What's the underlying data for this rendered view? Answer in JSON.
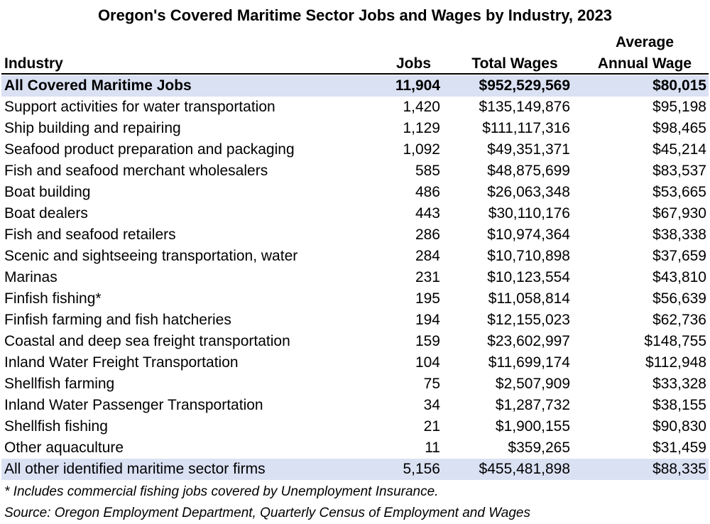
{
  "title": "Oregon's Covered Maritime Sector Jobs and Wages by Industry, 2023",
  "table": {
    "header": [
      [
        "Industry"
      ],
      [
        "Jobs"
      ],
      [
        "Total Wages"
      ],
      [
        "Average",
        "Annual Wage"
      ]
    ],
    "rows": [
      [
        "All Covered Maritime Jobs",
        "11,904",
        "$952,529,569",
        "$80,015"
      ],
      [
        "Support activities for water transportation",
        "1,420",
        "$135,149,876",
        "$95,198"
      ],
      [
        "Ship building and repairing",
        "1,129",
        "$111,117,316",
        "$98,465"
      ],
      [
        "Seafood product preparation and packaging",
        "1,092",
        "$49,351,371",
        "$45,214"
      ],
      [
        "Fish and seafood merchant wholesalers",
        "585",
        "$48,875,699",
        "$83,537"
      ],
      [
        "Boat building",
        "486",
        "$26,063,348",
        "$53,665"
      ],
      [
        "Boat dealers",
        "443",
        "$30,110,176",
        "$67,930"
      ],
      [
        "Fish and seafood retailers",
        "286",
        "$10,974,364",
        "$38,338"
      ],
      [
        "Scenic and sightseeing transportation, water",
        "284",
        "$10,710,898",
        "$37,659"
      ],
      [
        "Marinas",
        "231",
        "$10,123,554",
        "$43,810"
      ],
      [
        "Finfish fishing*",
        "195",
        "$11,058,814",
        "$56,639"
      ],
      [
        "Finfish farming and fish hatcheries",
        "194",
        "$12,155,023",
        "$62,736"
      ],
      [
        "Coastal and deep sea freight transportation",
        "159",
        "$23,602,997",
        "$148,755"
      ],
      [
        "Inland Water Freight Transportation",
        "104",
        "$11,699,174",
        "$112,948"
      ],
      [
        "Shellfish farming",
        "75",
        "$2,507,909",
        "$33,328"
      ],
      [
        "Inland Water Passenger Transportation",
        "34",
        "$1,287,732",
        "$38,155"
      ],
      [
        "Shellfish fishing",
        "21",
        "$1,900,155",
        "$90,830"
      ],
      [
        "Other aquaculture",
        "11",
        "$359,265",
        "$31,459"
      ],
      [
        "All other identified maritime sector firms",
        "5,156",
        "$455,481,898",
        "$88,335"
      ]
    ]
  },
  "notes": [
    "* Includes commercial fishing jobs covered by Unemployment Insurance.",
    "Source: Oregon Employment Department, Quarterly Census of Employment and Wages"
  ]
}
